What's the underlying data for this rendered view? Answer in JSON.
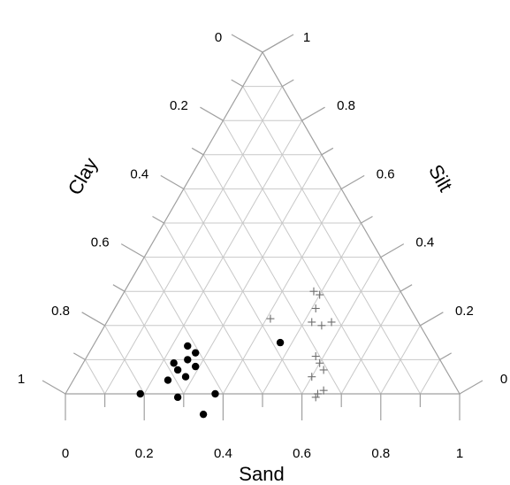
{
  "chart_data": {
    "type": "ternary-scatter",
    "title": "",
    "axes": {
      "sand": {
        "label": "Sand",
        "ticks": [
          "0",
          "0.2",
          "0.4",
          "0.6",
          "0.8",
          "1"
        ]
      },
      "clay": {
        "label": "Clay",
        "ticks": [
          "0",
          "0.2",
          "0.4",
          "0.6",
          "0.8",
          "1"
        ]
      },
      "silt": {
        "label": "Silt",
        "ticks": [
          "0",
          "0.2",
          "0.4",
          "0.6",
          "0.8",
          "1"
        ]
      }
    },
    "grid": true,
    "gridStep": 0.1,
    "series": [
      {
        "marker": "dot",
        "color": "#000000",
        "points": [
          {
            "sand": 0.19,
            "clay": 0.81
          },
          {
            "sand": 0.24,
            "clay": 0.62
          },
          {
            "sand": 0.26,
            "clay": 0.64
          },
          {
            "sand": 0.27,
            "clay": 0.61
          },
          {
            "sand": 0.29,
            "clay": 0.63
          },
          {
            "sand": 0.23,
            "clay": 0.68
          },
          {
            "sand": 0.25,
            "clay": 0.68
          },
          {
            "sand": 0.28,
            "clay": 0.67
          },
          {
            "sand": 0.24,
            "clay": 0.72
          },
          {
            "sand": 0.29,
            "clay": 0.72
          },
          {
            "sand": 0.38,
            "clay": 0.68
          },
          {
            "sand": 0.38,
            "clay": 0.62
          },
          {
            "sand": 0.47,
            "clay": 0.38
          }
        ]
      },
      {
        "marker": "plus",
        "color": "#6e6e6e",
        "points": [
          {
            "sand": 0.48,
            "clay": 0.22
          },
          {
            "sand": 0.5,
            "clay": 0.21
          },
          {
            "sand": 0.51,
            "clay": 0.24
          },
          {
            "sand": 0.52,
            "clay": 0.27
          },
          {
            "sand": 0.55,
            "clay": 0.25
          },
          {
            "sand": 0.57,
            "clay": 0.22
          },
          {
            "sand": 0.41,
            "clay": 0.37
          },
          {
            "sand": 0.58,
            "clay": 0.31
          },
          {
            "sand": 0.6,
            "clay": 0.31
          },
          {
            "sand": 0.62,
            "clay": 0.31
          },
          {
            "sand": 0.6,
            "clay": 0.35
          },
          {
            "sand": 0.65,
            "clay": 0.34
          },
          {
            "sand": 0.64,
            "clay": 0.37
          },
          {
            "sand": 0.64,
            "clay": 0.36
          }
        ]
      }
    ]
  }
}
